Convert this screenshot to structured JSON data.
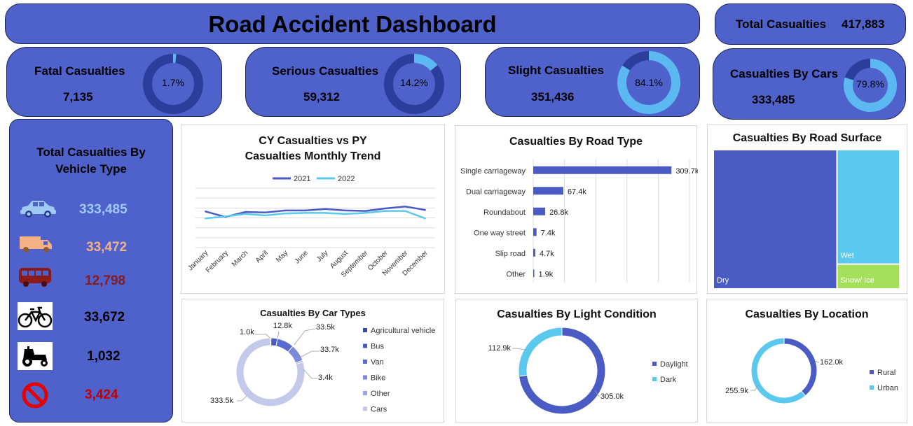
{
  "header": {
    "title": "Road Accident Dashboard"
  },
  "total": {
    "label": "Total Casualties",
    "value": "417,883"
  },
  "kpis": [
    {
      "label": "Fatal Casualties",
      "value": "7,135",
      "pct_label": "1.7%",
      "pct": 1.7
    },
    {
      "label": "Serious Casualties",
      "value": "59,312",
      "pct_label": "14.2%",
      "pct": 14.2
    },
    {
      "label": "Slight Casualties",
      "value": "351,436",
      "pct_label": "84.1%",
      "pct": 84.1
    },
    {
      "label": "Casualties By Cars",
      "value": "333,485",
      "pct_label": "79.8%",
      "pct": 79.8
    }
  ],
  "vehicle_panel": {
    "title": "Total Casualties By Vehicle Type",
    "items": [
      {
        "icon": "car-icon",
        "value": "333,485",
        "color": "#9ec9f2"
      },
      {
        "icon": "truck-icon",
        "value": "33,472",
        "color": "#f4b183"
      },
      {
        "icon": "bus-icon",
        "value": "12,798",
        "color": "#8b1a1a"
      },
      {
        "icon": "bicycle-icon",
        "value": "33,672",
        "color": "#000000"
      },
      {
        "icon": "tractor-icon",
        "value": "1,032",
        "color": "#000000"
      },
      {
        "icon": "no-entry-icon",
        "value": "3,424",
        "color": "#c00000"
      }
    ]
  },
  "chart_data": [
    {
      "id": "monthly_trend",
      "type": "line",
      "title": "CY Casualties vs PY Casualties Monthly Trend",
      "categories": [
        "January",
        "February",
        "March",
        "April",
        "May",
        "June",
        "July",
        "August",
        "September",
        "October",
        "November",
        "December"
      ],
      "series": [
        {
          "name": "2021",
          "color": "#4a5bc4",
          "values": [
            36.5,
            31.0,
            36.0,
            35.5,
            37.5,
            37.5,
            39.0,
            37.5,
            37.0,
            39.5,
            41.5,
            38.0
          ]
        },
        {
          "name": "2022",
          "color": "#5bc8ee",
          "values": [
            29.5,
            31.5,
            34.0,
            32.5,
            34.5,
            35.0,
            35.0,
            34.0,
            35.0,
            37.0,
            37.0,
            29.5
          ]
        }
      ],
      "ylim": [
        0,
        60
      ],
      "grid": true,
      "legend": "top"
    },
    {
      "id": "road_type",
      "type": "bar",
      "orientation": "horizontal",
      "title": "Casualties By Road Type",
      "categories": [
        "Single carriageway",
        "Dual carriageway",
        "Roundabout",
        "One way street",
        "Slip road",
        "Other"
      ],
      "values": [
        309.7,
        67.4,
        26.8,
        7.4,
        4.7,
        1.9
      ],
      "labels": [
        "309.7k",
        "67.4k",
        "26.8k",
        "7.4k",
        "4.7k",
        "1.9k"
      ],
      "xlim": [
        0,
        350
      ],
      "color": "#4a5bc4"
    },
    {
      "id": "road_surface",
      "type": "treemap",
      "title": "Casualties By Road Surface",
      "categories": [
        "Dry",
        "Wet",
        "Snow/ Ice"
      ],
      "values": [
        279.4,
        115.0,
        23.5
      ],
      "colors": [
        "#4a5bc4",
        "#5bc8ee",
        "#a5e05b"
      ]
    },
    {
      "id": "car_types",
      "type": "pie",
      "subtype": "doughnut",
      "title": "Casualties By Car Types",
      "categories": [
        "Agricultural vehicle",
        "Bus",
        "Van",
        "Bike",
        "Other",
        "Cars"
      ],
      "values": [
        1.0,
        12.8,
        33.5,
        33.7,
        3.4,
        333.5
      ],
      "labels": [
        "1.0k",
        "12.8k",
        "33.5k",
        "33.7k",
        "3.4k",
        "333.5k"
      ],
      "colors": [
        "#3b4aa8",
        "#4a5bc4",
        "#5a6bcf",
        "#7b8ad8",
        "#9aa5e0",
        "#c3c9ea"
      ]
    },
    {
      "id": "light_condition",
      "type": "pie",
      "subtype": "doughnut",
      "title": "Casualties By Light Condition",
      "categories": [
        "Daylight",
        "Dark"
      ],
      "values": [
        305.0,
        112.9
      ],
      "labels": [
        "305.0k",
        "112.9k"
      ],
      "colors": [
        "#4a5bc4",
        "#5bc8ee"
      ]
    },
    {
      "id": "location",
      "type": "pie",
      "subtype": "doughnut",
      "title": "Casualties By Location",
      "categories": [
        "Rural",
        "Urban"
      ],
      "values": [
        162.0,
        255.9
      ],
      "labels": [
        "162.0k",
        "255.9k"
      ],
      "colors": [
        "#4a5bc4",
        "#5bc8ee"
      ]
    }
  ]
}
